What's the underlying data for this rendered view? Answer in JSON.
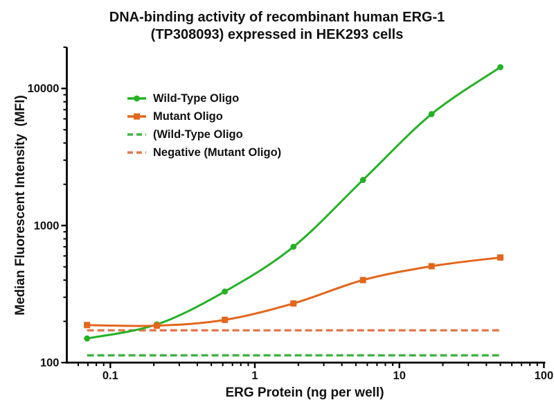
{
  "colors": {
    "background": "#ffffff",
    "axis": "#000000",
    "text": "#111111",
    "wild_type_green": "#24b124",
    "mutant_orange": "#e2661c",
    "negative_green_dashed": "#44b244",
    "negative_orange_dashed": "#e1794d"
  },
  "chart_data": {
    "type": "line",
    "title_lines": [
      "DNA-binding activity of recombinant human ERG-1",
      "(TP308093) expressed in HEK293 cells"
    ],
    "xlabel": "ERG Protein (ng per well)",
    "ylabel": "Median Fluorescent Intensity  (MFI)",
    "x_scale": "log",
    "y_scale": "log",
    "xlim": [
      0.05,
      100
    ],
    "ylim": [
      100,
      20000
    ],
    "grid": false,
    "legend_position": "upper-left-inside",
    "x_ticks": {
      "values": [
        0.1,
        1,
        10,
        100
      ],
      "labels": [
        "0.1",
        "1",
        "10",
        "100"
      ]
    },
    "y_ticks": {
      "values": [
        100,
        1000,
        10000
      ],
      "labels": [
        "100",
        "1000",
        "10000"
      ]
    },
    "x": [
      0.069,
      0.21,
      0.62,
      1.85,
      5.6,
      16.7,
      50
    ],
    "series": [
      {
        "name": "Wild-Type Oligo",
        "color": "#24b124",
        "line_style": "solid",
        "marker": "circle",
        "values": [
          150,
          190,
          330,
          700,
          2150,
          6500,
          14300
        ]
      },
      {
        "name": "Mutant Oligo",
        "color": "#e2661c",
        "line_style": "solid",
        "marker": "square",
        "values": [
          188,
          186,
          205,
          270,
          400,
          505,
          585
        ]
      },
      {
        "name": "(Wild-Type Oligo",
        "color": "#44b244",
        "line_style": "dashed",
        "marker": "none",
        "values": [
          113,
          113,
          113,
          113,
          113,
          113,
          113
        ]
      },
      {
        "name": "Negative (Mutant Oligo)",
        "color": "#e1794d",
        "line_style": "dashed",
        "marker": "none",
        "values": [
          172,
          172,
          172,
          172,
          172,
          172,
          172
        ]
      }
    ]
  }
}
